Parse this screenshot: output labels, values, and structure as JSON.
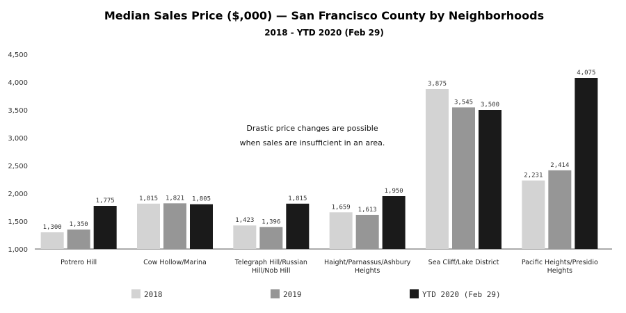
{
  "chart_data": {
    "type": "bar",
    "title": "Median Sales Price ($,000) — San Francisco County by Neighborhoods",
    "subtitle": "2018 - YTD 2020 (Feb 29)",
    "categories": [
      [
        "Potrero Hill"
      ],
      [
        "Cow Hollow/Marina"
      ],
      [
        "Telegraph Hill/Russian",
        "Hill/Nob Hill"
      ],
      [
        "Haight/Parnassus/Ashbury",
        "Heights"
      ],
      [
        "Sea Cliff/Lake District"
      ],
      [
        "Pacific Heights/Presidio",
        "Heights"
      ]
    ],
    "series": [
      {
        "name": "2018",
        "color": "#d3d3d3",
        "values": [
          1300,
          1815,
          1423,
          1659,
          3875,
          2231
        ],
        "labels": [
          "1,300",
          "1,815",
          "1,423",
          "1,659",
          "3,875",
          "2,231"
        ]
      },
      {
        "name": "2019",
        "color": "#969696",
        "values": [
          1350,
          1821,
          1396,
          1613,
          3545,
          2414
        ],
        "labels": [
          "1,350",
          "1,821",
          "1,396",
          "1,613",
          "3,545",
          "2,414"
        ]
      },
      {
        "name": "YTD 2020 (Feb 29)",
        "color": "#1a1a1a",
        "values": [
          1775,
          1805,
          1815,
          1950,
          3500,
          4075
        ],
        "labels": [
          "1,775",
          "1,805",
          "1,815",
          "1,950",
          "3,500",
          "4,075"
        ]
      }
    ],
    "ylim": [
      1000,
      4500
    ],
    "yticks": [
      1000,
      1500,
      2000,
      2500,
      3000,
      3500,
      4000,
      4500
    ],
    "ytick_labels": [
      "1,000",
      "1,500",
      "2,000",
      "2,500",
      "3,000",
      "3,500",
      "4,000",
      "4,500"
    ],
    "annotation": [
      "Drastic price changes are possible",
      "when sales are insufficient in an area."
    ],
    "legend_position": "bottom",
    "grid": false
  }
}
